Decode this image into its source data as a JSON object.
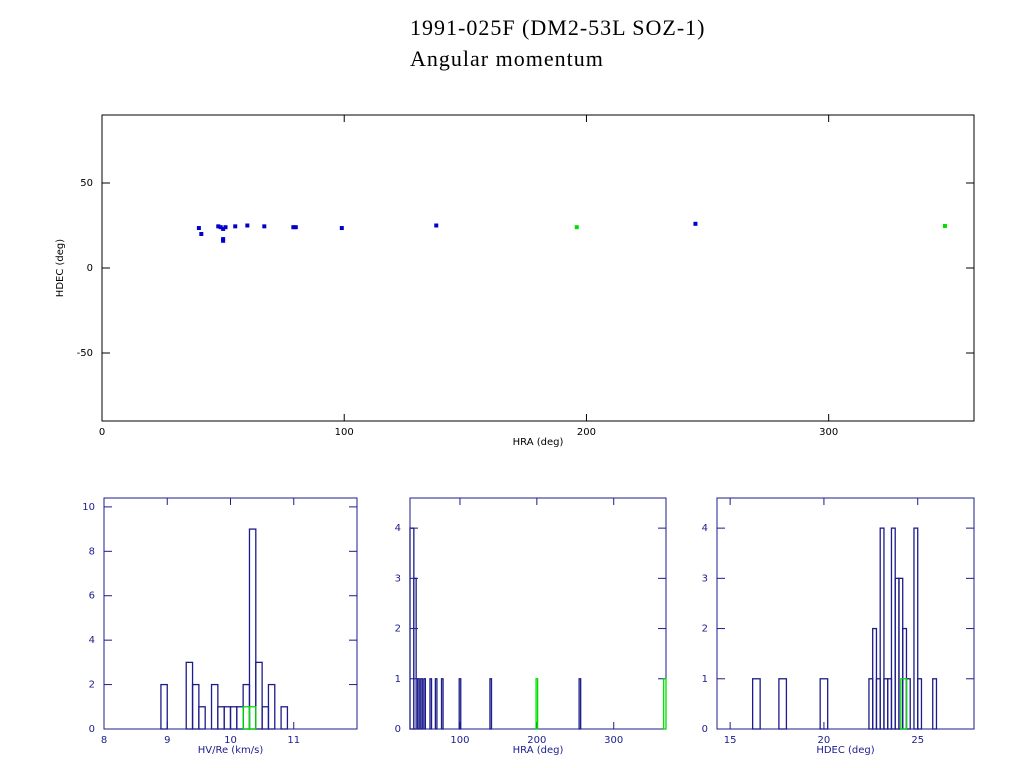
{
  "header": {
    "title": "1991-025F (DM2-53L SOZ-1)",
    "subtitle": "Angular momentum"
  },
  "chart_data": [
    {
      "type": "scatter",
      "xlabel": "HRA (deg)",
      "ylabel": "HDEC (deg)",
      "axis_color": "#000000",
      "xlim": [
        0,
        360
      ],
      "ylim": [
        -90,
        90
      ],
      "xticks": [
        0,
        100,
        200,
        300
      ],
      "yticks": [
        -50,
        0,
        50
      ],
      "series": [
        {
          "color": "#0000cc",
          "x": [
            40,
            41,
            48,
            49,
            50,
            50,
            50,
            51,
            55,
            60,
            67,
            79,
            80,
            99,
            138,
            245
          ],
          "values": [
            23.5,
            20,
            24.5,
            24,
            23,
            17,
            16,
            24,
            24.5,
            25,
            24.5,
            24,
            24,
            23.5,
            25,
            26
          ]
        },
        {
          "color": "#00dd00",
          "x": [
            196,
            348
          ],
          "values": [
            24,
            24.7
          ]
        }
      ]
    },
    {
      "type": "histogram",
      "xlabel": "HV/Re (km/s)",
      "axis_color": "#1c1c8c",
      "xlim": [
        8,
        12
      ],
      "ylim": [
        0,
        10.4
      ],
      "xticks": [
        8,
        9,
        10,
        11
      ],
      "yticks": [
        0,
        2,
        4,
        6,
        8,
        10
      ],
      "series": [
        {
          "color": "#1c1c8c",
          "bins": [
            8.9,
            9.0,
            9.1,
            9.2,
            9.3,
            9.4,
            9.5,
            9.6,
            9.7,
            9.8,
            9.9,
            10.0,
            10.1,
            10.2,
            10.3,
            10.4,
            10.5,
            10.6,
            10.7,
            10.8,
            10.9
          ],
          "values": [
            2,
            0,
            0,
            0,
            3,
            2,
            1,
            0,
            2,
            1,
            1,
            1,
            1,
            2,
            9,
            3,
            1,
            2,
            0,
            1
          ]
        },
        {
          "color": "#00dd00",
          "bins": [
            10.2,
            10.3,
            10.4
          ],
          "values": [
            1,
            1
          ]
        }
      ]
    },
    {
      "type": "histogram",
      "xlabel": "HRA (deg)",
      "axis_color": "#1c1c8c",
      "xlim": [
        35,
        368
      ],
      "ylim": [
        0,
        4.6
      ],
      "xticks": [
        100,
        200,
        300
      ],
      "yticks": [
        0,
        1,
        2,
        3,
        4
      ],
      "series": [
        {
          "color": "#1c1c8c",
          "bins": [
            35,
            40,
            43,
            45,
            47,
            49,
            51,
            53,
            55,
            61,
            63,
            68,
            70,
            76,
            78,
            99,
            101,
            139,
            141,
            255,
            257,
            368
          ],
          "values": [
            4,
            3,
            0,
            1,
            0,
            1,
            0,
            1,
            0,
            1,
            0,
            1,
            0,
            1,
            0,
            1,
            0,
            1,
            0,
            1,
            0
          ]
        },
        {
          "color": "#00dd00",
          "bins": [
            199,
            201,
            365,
            368
          ],
          "values": [
            1,
            0,
            1
          ]
        }
      ]
    },
    {
      "type": "histogram",
      "xlabel": "HDEC (deg)",
      "axis_color": "#1c1c8c",
      "xlim": [
        14.3,
        28
      ],
      "ylim": [
        0,
        4.6
      ],
      "xticks": [
        15,
        20,
        25
      ],
      "yticks": [
        0,
        1,
        2,
        3,
        4
      ],
      "series": [
        {
          "color": "#1c1c8c",
          "bins": [
            16.2,
            16.6,
            17.6,
            18.0,
            19.8,
            20.2,
            22.4,
            22.6,
            22.8,
            23.0,
            23.2,
            23.4,
            23.6,
            23.8,
            24.0,
            24.2,
            24.4,
            24.6,
            24.8,
            25.0,
            25.2,
            25.8,
            26.0
          ],
          "values": [
            1,
            0,
            1,
            0,
            1,
            0,
            1,
            2,
            1,
            4,
            1,
            1,
            4,
            3,
            3,
            2,
            1,
            0,
            4,
            1,
            0,
            1
          ]
        },
        {
          "color": "#00dd00",
          "bins": [
            24.1,
            24.4
          ],
          "values": [
            1
          ]
        }
      ]
    }
  ]
}
